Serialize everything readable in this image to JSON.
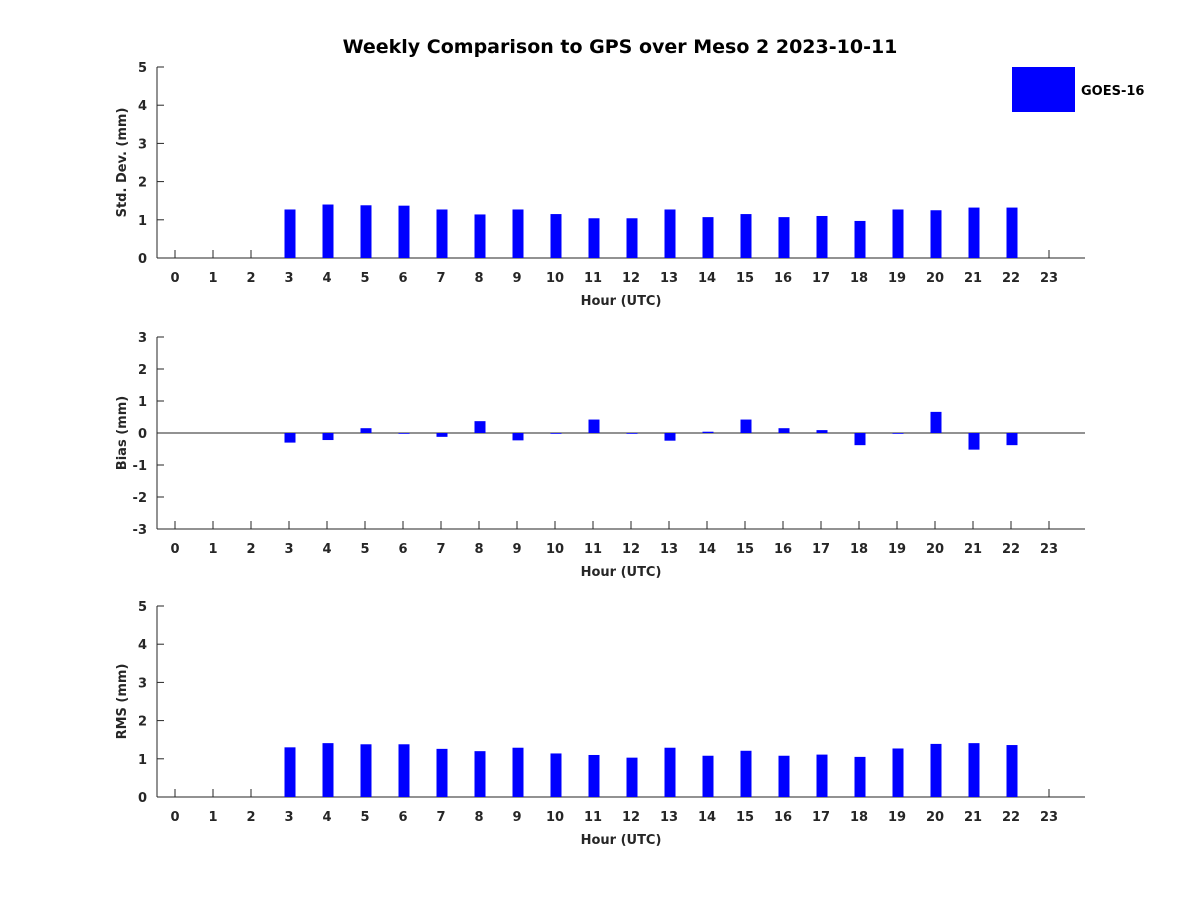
{
  "chart_data": {
    "type": "bar",
    "title": "Weekly Comparison to GPS over Meso 2 2023-10-11",
    "legend": {
      "label": "GOES-16",
      "color": "#0000ff",
      "placement": "top-right"
    },
    "bar_color": "#0000ff",
    "categories": [
      "0",
      "1",
      "2",
      "3",
      "4",
      "5",
      "6",
      "7",
      "8",
      "9",
      "10",
      "11",
      "12",
      "13",
      "14",
      "15",
      "16",
      "17",
      "18",
      "19",
      "20",
      "21",
      "22",
      "23"
    ],
    "panels": [
      {
        "id": "std",
        "ylabel": "Std. Dev. (mm)",
        "xlabel": "Hour (UTC)",
        "ylim": [
          0,
          5
        ],
        "yticks": [
          "0",
          "1",
          "2",
          "3",
          "4",
          "5"
        ],
        "values": [
          null,
          null,
          null,
          1.27,
          1.4,
          1.38,
          1.37,
          1.27,
          1.14,
          1.27,
          1.15,
          1.04,
          1.04,
          1.27,
          1.07,
          1.15,
          1.07,
          1.1,
          0.97,
          1.27,
          1.25,
          1.32,
          1.32,
          null
        ]
      },
      {
        "id": "bias",
        "ylabel": "Bias (mm)",
        "xlabel": "Hour (UTC)",
        "ylim": [
          -3,
          3
        ],
        "yticks": [
          "-3",
          "-2",
          "-1",
          "0",
          "1",
          "2",
          "3"
        ],
        "values": [
          null,
          null,
          null,
          -0.3,
          -0.22,
          0.15,
          -0.02,
          -0.12,
          0.37,
          -0.23,
          0.0,
          0.42,
          -0.02,
          -0.24,
          0.04,
          0.42,
          0.15,
          0.09,
          -0.38,
          -0.02,
          0.66,
          -0.52,
          -0.38,
          null
        ]
      },
      {
        "id": "rms",
        "ylabel": "RMS (mm)",
        "xlabel": "Hour (UTC)",
        "ylim": [
          0,
          5
        ],
        "yticks": [
          "0",
          "1",
          "2",
          "3",
          "4",
          "5"
        ],
        "values": [
          null,
          null,
          null,
          1.3,
          1.41,
          1.38,
          1.38,
          1.26,
          1.2,
          1.29,
          1.14,
          1.1,
          1.03,
          1.29,
          1.08,
          1.21,
          1.08,
          1.11,
          1.05,
          1.27,
          1.39,
          1.41,
          1.36,
          null
        ]
      }
    ]
  }
}
